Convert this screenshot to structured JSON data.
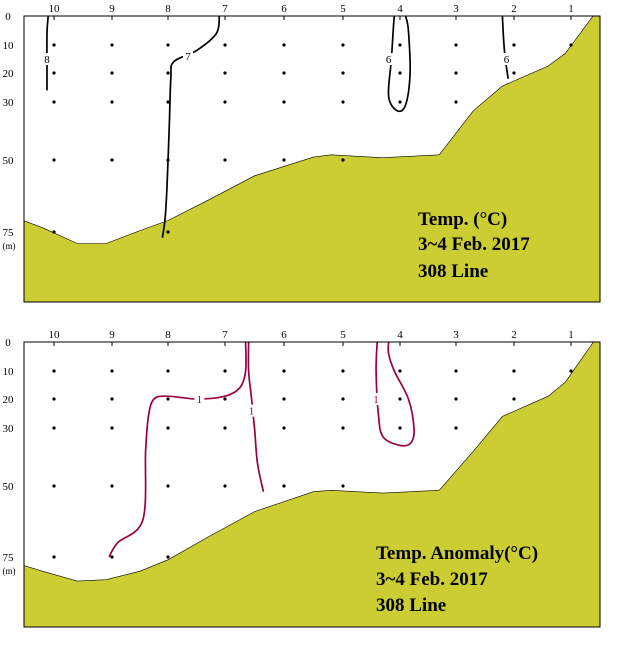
{
  "chart_data": [
    {
      "type": "contour",
      "title": "Temp. (°C)",
      "subtitle": "3~4 Feb. 2017",
      "section": "308 Line",
      "stations": [
        "10",
        "9",
        "8",
        "7",
        "6",
        "5",
        "4",
        "3",
        "2",
        "1"
      ],
      "depth_ticks": [
        "0",
        "10",
        "20",
        "30",
        "50",
        "75"
      ],
      "depth_unit": "(m)",
      "station_x": [
        10,
        9,
        8,
        7,
        6,
        5,
        4,
        3,
        2,
        1
      ],
      "depth_y": [
        0,
        10,
        20,
        30,
        50,
        75
      ],
      "xlim": [
        10.6,
        0.5
      ],
      "ylim": [
        0,
        100
      ],
      "sample_points": [
        {
          "station": 10,
          "depths": [
            10,
            20,
            30,
            50,
            75
          ]
        },
        {
          "station": 9,
          "depths": [
            10,
            20,
            30,
            50
          ]
        },
        {
          "station": 8,
          "depths": [
            10,
            20,
            30,
            50,
            75
          ]
        },
        {
          "station": 7,
          "depths": [
            10,
            20,
            30,
            50
          ]
        },
        {
          "station": 6,
          "depths": [
            10,
            20,
            30,
            50
          ]
        },
        {
          "station": 5,
          "depths": [
            10,
            20,
            30,
            50
          ]
        },
        {
          "station": 4,
          "depths": [
            10,
            20,
            30
          ]
        },
        {
          "station": 3,
          "depths": [
            10,
            20,
            30
          ]
        },
        {
          "station": 2,
          "depths": [
            10,
            20
          ]
        },
        {
          "station": 1,
          "depths": [
            10
          ]
        }
      ],
      "contours": [
        {
          "label": "8",
          "color": "#000000",
          "points": [
            [
              10.1,
              0
            ],
            [
              10.12,
              6
            ],
            [
              10.12,
              20
            ],
            [
              10.12,
              26
            ]
          ],
          "label_at": [
            10.12,
            15
          ]
        },
        {
          "label": "7",
          "color": "#000000",
          "points": [
            [
              7.1,
              0
            ],
            [
              7.15,
              6
            ],
            [
              7.5,
              12
            ],
            [
              7.9,
              16
            ],
            [
              7.95,
              22
            ],
            [
              7.98,
              40
            ],
            [
              8.02,
              60
            ],
            [
              8.05,
              70
            ],
            [
              8.1,
              77
            ]
          ],
          "label_at": [
            7.65,
            14
          ]
        },
        {
          "label": "6",
          "color": "#000000",
          "points": [
            [
              4.1,
              0
            ],
            [
              4.12,
              5
            ],
            [
              4.15,
              15
            ],
            [
              4.2,
              28
            ],
            [
              4.05,
              33
            ],
            [
              3.9,
              31
            ],
            [
              3.82,
              20
            ],
            [
              3.85,
              5
            ],
            [
              3.9,
              0
            ]
          ],
          "label_at": [
            4.2,
            15
          ]
        },
        {
          "label": "6",
          "color": "#000000",
          "points": [
            [
              2.2,
              0
            ],
            [
              2.18,
              8
            ],
            [
              2.15,
              15
            ],
            [
              2.1,
              22
            ]
          ],
          "label_at": [
            2.13,
            15
          ]
        }
      ],
      "bathymetry": [
        [
          10.6,
          70.5
        ],
        [
          10.2,
          73.5
        ],
        [
          9.6,
          79
        ],
        [
          9.1,
          79
        ],
        [
          8.5,
          74.5
        ],
        [
          8.0,
          71
        ],
        [
          7.3,
          64
        ],
        [
          6.5,
          55.5
        ],
        [
          5.5,
          49
        ],
        [
          5.2,
          48.2
        ],
        [
          4.3,
          49.2
        ],
        [
          3.3,
          48.2
        ],
        [
          2.7,
          33
        ],
        [
          2.2,
          24.5
        ],
        [
          1.4,
          17.5
        ],
        [
          1.1,
          13
        ],
        [
          0.5,
          -3
        ]
      ],
      "colors": {
        "land": "#cccc33",
        "contour": "#000000",
        "frame": "#000000"
      }
    },
    {
      "type": "contour",
      "title": "Temp. Anomaly(°C)",
      "subtitle": "3~4 Feb. 2017",
      "section": "308 Line",
      "stations": [
        "10",
        "9",
        "8",
        "7",
        "6",
        "5",
        "4",
        "3",
        "2",
        "1"
      ],
      "depth_ticks": [
        "0",
        "10",
        "20",
        "30",
        "50",
        "75"
      ],
      "depth_unit": "(m)",
      "station_x": [
        10,
        9,
        8,
        7,
        6,
        5,
        4,
        3,
        2,
        1
      ],
      "depth_y": [
        0,
        10,
        20,
        30,
        50,
        75
      ],
      "xlim": [
        10.6,
        0.5
      ],
      "ylim": [
        0,
        100
      ],
      "sample_points": [
        {
          "station": 10,
          "depths": [
            10,
            20,
            30,
            50,
            75
          ]
        },
        {
          "station": 9,
          "depths": [
            10,
            20,
            30,
            50,
            75
          ]
        },
        {
          "station": 8,
          "depths": [
            10,
            20,
            30,
            50,
            75
          ]
        },
        {
          "station": 7,
          "depths": [
            10,
            20,
            30,
            50
          ]
        },
        {
          "station": 6,
          "depths": [
            10,
            20,
            30,
            50
          ]
        },
        {
          "station": 5,
          "depths": [
            10,
            20,
            30,
            50
          ]
        },
        {
          "station": 4,
          "depths": [
            10,
            20,
            30
          ]
        },
        {
          "station": 3,
          "depths": [
            10,
            20,
            30
          ]
        },
        {
          "station": 2,
          "depths": [
            10,
            20
          ]
        },
        {
          "station": 1,
          "depths": [
            10
          ]
        }
      ],
      "contours": [
        {
          "label": "1",
          "color": "#990044",
          "points": [
            [
              6.6,
              0
            ],
            [
              6.6,
              10
            ],
            [
              6.55,
              20
            ],
            [
              6.5,
              30
            ],
            [
              6.45,
              42
            ],
            [
              6.35,
              52
            ]
          ],
          "label_at": [
            6.55,
            24
          ]
        },
        {
          "label": "1",
          "color": "#990044",
          "points": [
            [
              6.65,
              0
            ],
            [
              6.65,
              10
            ],
            [
              6.75,
              16
            ],
            [
              7.0,
              19
            ],
            [
              7.5,
              20
            ],
            [
              8.0,
              19
            ],
            [
              8.25,
              20
            ],
            [
              8.35,
              26
            ],
            [
              8.4,
              38
            ],
            [
              8.45,
              62
            ],
            [
              8.9,
              70
            ],
            [
              9.05,
              75
            ]
          ],
          "label_at": [
            7.45,
            20
          ]
        },
        {
          "label": "1",
          "color": "#990044",
          "points": [
            [
              4.4,
              0
            ],
            [
              4.42,
              10
            ],
            [
              4.38,
              25
            ],
            [
              4.3,
              33
            ],
            [
              4.0,
              36
            ],
            [
              3.8,
              35
            ],
            [
              3.75,
              30
            ],
            [
              3.85,
              20
            ],
            [
              4.1,
              10
            ],
            [
              4.2,
              4
            ],
            [
              4.2,
              0
            ]
          ],
          "label_at": [
            4.42,
            20
          ]
        }
      ],
      "bathymetry": [
        [
          10.6,
          77.5
        ],
        [
          10.2,
          80
        ],
        [
          9.6,
          83.5
        ],
        [
          9.1,
          83
        ],
        [
          8.5,
          80
        ],
        [
          8.0,
          76
        ],
        [
          7.3,
          68
        ],
        [
          6.5,
          59
        ],
        [
          5.5,
          52
        ],
        [
          5.2,
          51.5
        ],
        [
          4.3,
          52.5
        ],
        [
          3.3,
          51.5
        ],
        [
          2.7,
          38
        ],
        [
          2.2,
          26
        ],
        [
          1.4,
          19
        ],
        [
          1.1,
          14
        ],
        [
          0.5,
          -3
        ]
      ],
      "colors": {
        "land": "#cccc33",
        "contour": "#990044",
        "frame": "#000000"
      }
    }
  ]
}
